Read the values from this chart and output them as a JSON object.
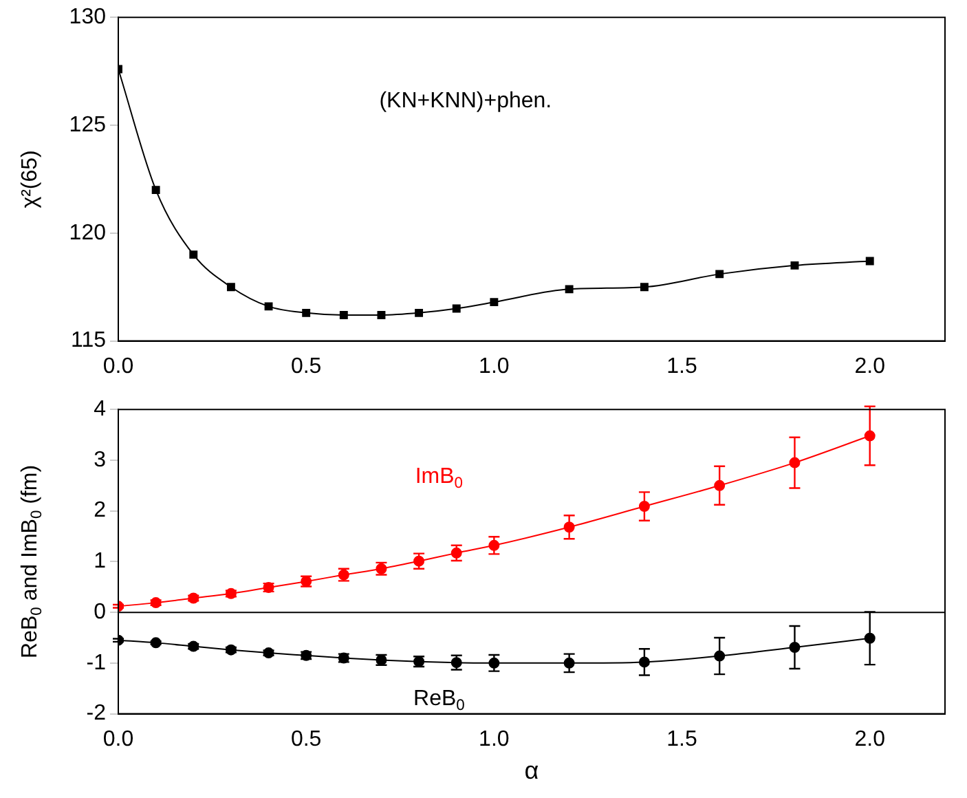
{
  "chart_data": [
    {
      "type": "line",
      "ylabel": "χ²(65)",
      "annotations": [
        "(KN+KNN)+phen."
      ],
      "x": [
        0,
        0.1,
        0.2,
        0.3,
        0.4,
        0.5,
        0.6,
        0.7,
        0.8,
        0.9,
        1.0,
        1.2,
        1.4,
        1.6,
        1.8,
        2.0
      ],
      "series": [
        {
          "color": "#000000",
          "values": [
            127.6,
            122,
            119,
            117.5,
            116.6,
            116.3,
            116.2,
            116.2,
            116.3,
            116.5,
            116.8,
            117.4,
            117.5,
            118.1,
            118.5,
            118.7
          ]
        }
      ],
      "xlim": [
        0,
        2.2
      ],
      "xticks": [
        {
          "value": 0,
          "label": "0.0"
        },
        {
          "value": 0.5,
          "label": "0.5"
        },
        {
          "value": 1,
          "label": "1.0"
        },
        {
          "value": 1.5,
          "label": "1.5"
        },
        {
          "value": 2,
          "label": "2.0"
        }
      ],
      "ylim": [
        115,
        130
      ],
      "yticks": [
        115,
        120,
        125,
        130
      ],
      "marker": "square",
      "grid": false,
      "legend": false
    },
    {
      "type": "line",
      "xlabel": "α",
      "ylabel": "ReB$_{0}$ and ImB$_{0}$ (fm)",
      "x": [
        0,
        0.1,
        0.2,
        0.3,
        0.4,
        0.5,
        0.6,
        0.7,
        0.8,
        0.9,
        1.0,
        1.2,
        1.4,
        1.6,
        1.8,
        2.0
      ],
      "series": [
        {
          "name": "ImB$_{0}$",
          "color": "#ff0000",
          "values": [
            0.12,
            0.19,
            0.28,
            0.37,
            0.49,
            0.61,
            0.74,
            0.86,
            1.01,
            1.17,
            1.32,
            1.68,
            2.09,
            2.5,
            2.95,
            3.48
          ],
          "errors": [
            0.03,
            0.05,
            0.05,
            0.06,
            0.08,
            0.1,
            0.12,
            0.12,
            0.15,
            0.15,
            0.17,
            0.23,
            0.28,
            0.38,
            0.5,
            0.58
          ]
        },
        {
          "name": "ReB$_{0}$",
          "color": "#000000",
          "values": [
            -0.55,
            -0.6,
            -0.67,
            -0.74,
            -0.8,
            -0.85,
            -0.9,
            -0.94,
            -0.97,
            -0.99,
            -1.0,
            -1.0,
            -0.98,
            -0.86,
            -0.69,
            -0.51
          ],
          "errors": [
            0.03,
            0.03,
            0.05,
            0.05,
            0.05,
            0.07,
            0.08,
            0.1,
            0.1,
            0.14,
            0.16,
            0.18,
            0.26,
            0.36,
            0.42,
            0.52
          ]
        }
      ],
      "xlim": [
        0,
        2.2
      ],
      "xticks": [
        {
          "value": 0,
          "label": "0.0"
        },
        {
          "value": 0.5,
          "label": "0.5"
        },
        {
          "value": 1,
          "label": "1.0"
        },
        {
          "value": 1.5,
          "label": "1.5"
        },
        {
          "value": 2,
          "label": "2.0"
        }
      ],
      "ylim": [
        -2,
        4
      ],
      "yticks": [
        -2,
        -1,
        0,
        1,
        2,
        3,
        4
      ],
      "ref_lines": [
        {
          "axis": "y",
          "value": 0,
          "color": "#000000"
        }
      ],
      "marker": "circle",
      "grid": false,
      "legend": false
    }
  ]
}
